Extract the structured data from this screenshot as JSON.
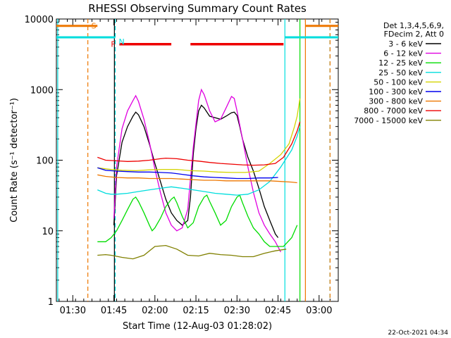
{
  "chart_data": {
    "type": "line",
    "title": "RHESSI Observing Summary Count Rates",
    "xlabel": "Start Time (12-Aug-03 01:28:02)",
    "ylabel": "Count Rate (s⁻¹ detector⁻¹)",
    "yscale": "log",
    "xlim": [
      -4,
      99
    ],
    "ylim": [
      1,
      10000
    ],
    "x_unit": "minutes since 01:28:02",
    "x_ticks": [
      {
        "t": 2,
        "label": "01:30"
      },
      {
        "t": 17,
        "label": "01:45"
      },
      {
        "t": 32,
        "label": "02:00"
      },
      {
        "t": 47,
        "label": "02:15"
      },
      {
        "t": 62,
        "label": "02:30"
      },
      {
        "t": 77,
        "label": "02:45"
      },
      {
        "t": 92,
        "label": "03:00"
      }
    ],
    "y_ticks": [
      {
        "v": 1,
        "label": "1"
      },
      {
        "v": 10,
        "label": "10"
      },
      {
        "v": 100,
        "label": "100"
      },
      {
        "v": 1000,
        "label": "1000"
      },
      {
        "v": 10000,
        "label": "10000"
      }
    ],
    "legend": {
      "header1": "Det 1,3,4,5,6,9,",
      "header2": "FDecim 2, Att 0",
      "position": "right"
    },
    "series": [
      {
        "name": "3 - 6 keV",
        "color": "#000000",
        "points": [
          [
            17,
            12
          ],
          [
            18,
            60
          ],
          [
            20,
            180
          ],
          [
            22,
            300
          ],
          [
            24,
            420
          ],
          [
            25,
            480
          ],
          [
            26,
            440
          ],
          [
            28,
            300
          ],
          [
            30,
            170
          ],
          [
            32,
            90
          ],
          [
            34,
            50
          ],
          [
            36,
            28
          ],
          [
            38,
            18
          ],
          [
            40,
            14
          ],
          [
            42,
            12
          ],
          [
            44,
            14
          ],
          [
            45,
            30
          ],
          [
            46,
            120
          ],
          [
            47,
            280
          ],
          [
            48,
            500
          ],
          [
            49,
            600
          ],
          [
            50,
            550
          ],
          [
            52,
            420
          ],
          [
            54,
            400
          ],
          [
            56,
            380
          ],
          [
            58,
            420
          ],
          [
            60,
            470
          ],
          [
            61,
            480
          ],
          [
            62,
            430
          ],
          [
            63,
            300
          ],
          [
            64,
            200
          ],
          [
            66,
            110
          ],
          [
            68,
            70
          ],
          [
            70,
            40
          ],
          [
            72,
            22
          ],
          [
            74,
            14
          ],
          [
            76,
            9
          ],
          [
            77,
            8
          ]
        ]
      },
      {
        "name": "6 - 12 keV",
        "color": "#e000e0",
        "points": [
          [
            17,
            15
          ],
          [
            18,
            80
          ],
          [
            20,
            280
          ],
          [
            22,
            500
          ],
          [
            24,
            700
          ],
          [
            25,
            820
          ],
          [
            26,
            680
          ],
          [
            28,
            380
          ],
          [
            30,
            180
          ],
          [
            32,
            75
          ],
          [
            34,
            35
          ],
          [
            36,
            18
          ],
          [
            38,
            12
          ],
          [
            40,
            10
          ],
          [
            42,
            11
          ],
          [
            44,
            20
          ],
          [
            46,
            150
          ],
          [
            48,
            700
          ],
          [
            49,
            1000
          ],
          [
            50,
            850
          ],
          [
            52,
            500
          ],
          [
            54,
            350
          ],
          [
            56,
            380
          ],
          [
            58,
            550
          ],
          [
            60,
            800
          ],
          [
            61,
            750
          ],
          [
            62,
            500
          ],
          [
            64,
            200
          ],
          [
            66,
            80
          ],
          [
            68,
            35
          ],
          [
            70,
            18
          ],
          [
            72,
            12
          ],
          [
            74,
            9
          ],
          [
            76,
            7
          ],
          [
            78,
            5
          ]
        ]
      },
      {
        "name": "12 - 25 keV",
        "color": "#00dd00",
        "points": [
          [
            11,
            7
          ],
          [
            14,
            7
          ],
          [
            16,
            8
          ],
          [
            18,
            10
          ],
          [
            20,
            14
          ],
          [
            22,
            20
          ],
          [
            24,
            28
          ],
          [
            25,
            30
          ],
          [
            26,
            26
          ],
          [
            28,
            18
          ],
          [
            30,
            12
          ],
          [
            31,
            10
          ],
          [
            32,
            11
          ],
          [
            34,
            15
          ],
          [
            36,
            22
          ],
          [
            38,
            28
          ],
          [
            39,
            30
          ],
          [
            40,
            25
          ],
          [
            42,
            16
          ],
          [
            44,
            11
          ],
          [
            46,
            13
          ],
          [
            48,
            22
          ],
          [
            50,
            30
          ],
          [
            51,
            32
          ],
          [
            52,
            26
          ],
          [
            54,
            18
          ],
          [
            56,
            12
          ],
          [
            58,
            14
          ],
          [
            60,
            22
          ],
          [
            62,
            30
          ],
          [
            63,
            32
          ],
          [
            64,
            25
          ],
          [
            66,
            16
          ],
          [
            68,
            11
          ],
          [
            70,
            9
          ],
          [
            72,
            7
          ],
          [
            74,
            6
          ],
          [
            77,
            6
          ],
          [
            79,
            6
          ],
          [
            82,
            8
          ],
          [
            84,
            12
          ]
        ]
      },
      {
        "name": "25 - 50 keV",
        "color": "#00dddd",
        "points": [
          [
            11,
            38
          ],
          [
            14,
            34
          ],
          [
            16,
            33
          ],
          [
            18,
            33
          ],
          [
            22,
            34
          ],
          [
            26,
            36
          ],
          [
            30,
            38
          ],
          [
            34,
            40
          ],
          [
            38,
            42
          ],
          [
            42,
            40
          ],
          [
            46,
            38
          ],
          [
            50,
            36
          ],
          [
            54,
            34
          ],
          [
            58,
            33
          ],
          [
            62,
            32
          ],
          [
            66,
            33
          ],
          [
            70,
            38
          ],
          [
            74,
            50
          ],
          [
            78,
            80
          ],
          [
            82,
            140
          ],
          [
            84,
            220
          ],
          [
            85,
            300
          ]
        ]
      },
      {
        "name": "50 - 100 keV",
        "color": "#d4d400",
        "points": [
          [
            11,
            78
          ],
          [
            16,
            74
          ],
          [
            20,
            72
          ],
          [
            25,
            71
          ],
          [
            30,
            73
          ],
          [
            35,
            74
          ],
          [
            40,
            74
          ],
          [
            45,
            71
          ],
          [
            50,
            70
          ],
          [
            55,
            68
          ],
          [
            60,
            67
          ],
          [
            65,
            67
          ],
          [
            70,
            70
          ],
          [
            74,
            90
          ],
          [
            78,
            120
          ],
          [
            81,
            170
          ],
          [
            83,
            300
          ],
          [
            84,
            420
          ],
          [
            85,
            750
          ]
        ]
      },
      {
        "name": "100 - 300 keV",
        "color": "#0000ee",
        "points": [
          [
            11,
            78
          ],
          [
            14,
            72
          ],
          [
            18,
            70
          ],
          [
            22,
            69
          ],
          [
            26,
            68
          ],
          [
            30,
            68
          ],
          [
            34,
            67
          ],
          [
            38,
            66
          ],
          [
            42,
            63
          ],
          [
            46,
            60
          ],
          [
            50,
            58
          ],
          [
            54,
            57
          ],
          [
            58,
            56
          ],
          [
            62,
            55
          ],
          [
            66,
            55
          ],
          [
            70,
            56
          ],
          [
            74,
            56
          ],
          [
            77,
            57
          ]
        ]
      },
      {
        "name": "300 - 800 keV",
        "color": "#ee7700",
        "points": [
          [
            11,
            62
          ],
          [
            14,
            59
          ],
          [
            18,
            57
          ],
          [
            22,
            56
          ],
          [
            26,
            56
          ],
          [
            30,
            55
          ],
          [
            34,
            55
          ],
          [
            38,
            55
          ],
          [
            42,
            54
          ],
          [
            46,
            53
          ],
          [
            50,
            52
          ],
          [
            54,
            52
          ],
          [
            58,
            51
          ],
          [
            62,
            51
          ],
          [
            66,
            51
          ],
          [
            70,
            51
          ],
          [
            74,
            51
          ],
          [
            78,
            50
          ],
          [
            82,
            49
          ],
          [
            84,
            48
          ]
        ]
      },
      {
        "name": "800 - 7000 keV",
        "color": "#ee0000",
        "points": [
          [
            11,
            110
          ],
          [
            14,
            100
          ],
          [
            18,
            98
          ],
          [
            22,
            96
          ],
          [
            26,
            97
          ],
          [
            30,
            100
          ],
          [
            34,
            105
          ],
          [
            36,
            107
          ],
          [
            40,
            105
          ],
          [
            44,
            100
          ],
          [
            48,
            97
          ],
          [
            52,
            93
          ],
          [
            56,
            90
          ],
          [
            60,
            88
          ],
          [
            64,
            86
          ],
          [
            68,
            85
          ],
          [
            72,
            86
          ],
          [
            76,
            90
          ],
          [
            79,
            110
          ],
          [
            82,
            170
          ],
          [
            84,
            260
          ],
          [
            85,
            350
          ]
        ]
      },
      {
        "name": "7000 - 15000 keV",
        "color": "#808000",
        "points": [
          [
            11,
            4.5
          ],
          [
            14,
            4.6
          ],
          [
            16,
            4.5
          ],
          [
            20,
            4.2
          ],
          [
            24,
            4.0
          ],
          [
            28,
            4.5
          ],
          [
            32,
            6.0
          ],
          [
            36,
            6.2
          ],
          [
            40,
            5.5
          ],
          [
            44,
            4.5
          ],
          [
            48,
            4.4
          ],
          [
            52,
            4.8
          ],
          [
            56,
            4.6
          ],
          [
            60,
            4.5
          ],
          [
            64,
            4.3
          ],
          [
            68,
            4.3
          ],
          [
            72,
            4.8
          ],
          [
            76,
            5.2
          ],
          [
            80,
            5.5
          ]
        ]
      }
    ],
    "annotations": {
      "flags": [
        {
          "label": "S",
          "color": "#ee7700",
          "line_x": 7.5,
          "level": 8000
        },
        {
          "label": "N",
          "color": "#00dddd",
          "line_x": 17.5,
          "level": 5500
        },
        {
          "label": "F",
          "color": "#ee0000",
          "level": 4400
        }
      ],
      "saa_segments": [
        [
          -4,
          11
        ],
        [
          87,
          99
        ]
      ],
      "night_segments": [
        [
          -4,
          17.5
        ],
        [
          79.5,
          99
        ]
      ],
      "flare_segments": [
        [
          19,
          38
        ],
        [
          45,
          79
        ]
      ],
      "vertical_markers": [
        {
          "t": -3.5,
          "color": "#00dddd",
          "style": "solid"
        },
        {
          "t": 17.5,
          "color": "#00dddd",
          "style": "dashed"
        },
        {
          "t": 79.5,
          "color": "#00dddd",
          "style": "solid"
        },
        {
          "t": 96,
          "color": "#00dddd",
          "style": "dashed"
        },
        {
          "t": 7.5,
          "color": "#ee7700",
          "style": "dashed"
        },
        {
          "t": 87,
          "color": "#ee7700",
          "style": "solid"
        },
        {
          "t": 96,
          "color": "#ee7700",
          "style": "dashed"
        },
        {
          "t": 85,
          "color": "#00dd00",
          "style": "solid"
        },
        {
          "t": 17.2,
          "color": "#000000",
          "style": "solid"
        }
      ]
    },
    "timestamp": "22-Oct-2021 04:34"
  }
}
